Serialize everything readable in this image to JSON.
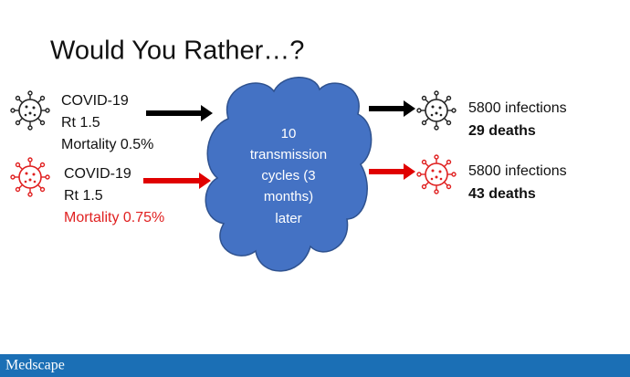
{
  "title": "Would You Rather…?",
  "inputs": [
    {
      "lines": [
        "COVID-19",
        "Rt 1.5",
        "Mortality 0.5%"
      ]
    },
    {
      "lines": [
        "COVID-19",
        "Rt 1.5",
        "Mortality 0.75%"
      ]
    }
  ],
  "cloud": {
    "lines": [
      "10",
      "transmission",
      "cycles (3",
      "months)",
      "later"
    ]
  },
  "outputs": [
    {
      "infections": "5800 infections",
      "deaths": "29 deaths"
    },
    {
      "infections": "5800 infections",
      "deaths": "43 deaths"
    }
  ],
  "footer": {
    "brand": "Medscape"
  }
}
